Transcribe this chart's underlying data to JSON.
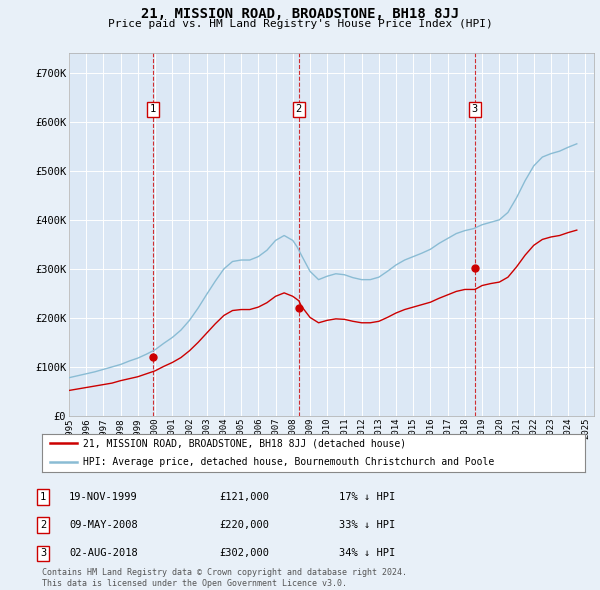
{
  "title": "21, MISSION ROAD, BROADSTONE, BH18 8JJ",
  "subtitle": "Price paid vs. HM Land Registry's House Price Index (HPI)",
  "bg_color": "#e8f0f8",
  "plot_bg_color": "#dce8f5",
  "grid_color": "#ffffff",
  "red_line_color": "#cc0000",
  "blue_line_color": "#8abcd4",
  "ylabel_ticks": [
    "£0",
    "£100K",
    "£200K",
    "£300K",
    "£400K",
    "£500K",
    "£600K",
    "£700K"
  ],
  "ytick_values": [
    0,
    100000,
    200000,
    300000,
    400000,
    500000,
    600000,
    700000
  ],
  "ylim": [
    0,
    740000
  ],
  "xlim_start": 1995.0,
  "xlim_end": 2025.5,
  "sale_points": [
    {
      "year": 1999.88,
      "price": 121000,
      "label": "1"
    },
    {
      "year": 2008.35,
      "price": 220000,
      "label": "2"
    },
    {
      "year": 2018.58,
      "price": 302000,
      "label": "3"
    }
  ],
  "sale_table": [
    {
      "num": "1",
      "date": "19-NOV-1999",
      "price": "£121,000",
      "pct": "17% ↓ HPI"
    },
    {
      "num": "2",
      "date": "09-MAY-2008",
      "price": "£220,000",
      "pct": "33% ↓ HPI"
    },
    {
      "num": "3",
      "date": "02-AUG-2018",
      "price": "£302,000",
      "pct": "34% ↓ HPI"
    }
  ],
  "legend_label_red": "21, MISSION ROAD, BROADSTONE, BH18 8JJ (detached house)",
  "legend_label_blue": "HPI: Average price, detached house, Bournemouth Christchurch and Poole",
  "footnote": "Contains HM Land Registry data © Crown copyright and database right 2024.\nThis data is licensed under the Open Government Licence v3.0.",
  "hpi_blue": {
    "years": [
      1995.0,
      1995.5,
      1996.0,
      1996.5,
      1997.0,
      1997.5,
      1998.0,
      1998.5,
      1999.0,
      1999.5,
      2000.0,
      2000.5,
      2001.0,
      2001.5,
      2002.0,
      2002.5,
      2003.0,
      2003.5,
      2004.0,
      2004.5,
      2005.0,
      2005.5,
      2006.0,
      2006.5,
      2007.0,
      2007.5,
      2008.0,
      2008.25,
      2008.5,
      2009.0,
      2009.5,
      2010.0,
      2010.5,
      2011.0,
      2011.5,
      2012.0,
      2012.5,
      2013.0,
      2013.5,
      2014.0,
      2014.5,
      2015.0,
      2015.5,
      2016.0,
      2016.5,
      2017.0,
      2017.5,
      2018.0,
      2018.5,
      2019.0,
      2019.5,
      2020.0,
      2020.5,
      2021.0,
      2021.5,
      2022.0,
      2022.5,
      2023.0,
      2023.5,
      2024.0,
      2024.5
    ],
    "values": [
      78000,
      82000,
      86000,
      90000,
      95000,
      100000,
      105000,
      112000,
      118000,
      126000,
      135000,
      148000,
      160000,
      175000,
      195000,
      220000,
      248000,
      275000,
      300000,
      315000,
      318000,
      318000,
      325000,
      338000,
      358000,
      368000,
      358000,
      345000,
      328000,
      295000,
      278000,
      285000,
      290000,
      288000,
      282000,
      278000,
      278000,
      283000,
      295000,
      308000,
      318000,
      325000,
      332000,
      340000,
      352000,
      362000,
      372000,
      378000,
      382000,
      390000,
      395000,
      400000,
      415000,
      445000,
      480000,
      510000,
      528000,
      535000,
      540000,
      548000,
      555000
    ],
    "smoothed": true
  },
  "hpi_red": {
    "years": [
      1995.0,
      1995.5,
      1996.0,
      1996.5,
      1997.0,
      1997.5,
      1998.0,
      1998.5,
      1999.0,
      1999.5,
      2000.0,
      2000.5,
      2001.0,
      2001.5,
      2002.0,
      2002.5,
      2003.0,
      2003.5,
      2004.0,
      2004.5,
      2005.0,
      2005.5,
      2006.0,
      2006.5,
      2007.0,
      2007.5,
      2008.0,
      2008.35,
      2008.5,
      2009.0,
      2009.5,
      2010.0,
      2010.5,
      2011.0,
      2011.5,
      2012.0,
      2012.5,
      2013.0,
      2013.5,
      2014.0,
      2014.5,
      2015.0,
      2015.5,
      2016.0,
      2016.5,
      2017.0,
      2017.5,
      2018.0,
      2018.58,
      2019.0,
      2019.5,
      2020.0,
      2020.5,
      2021.0,
      2021.5,
      2022.0,
      2022.5,
      2023.0,
      2023.5,
      2024.0,
      2024.5
    ],
    "values": [
      52000,
      55000,
      58000,
      61000,
      64000,
      67000,
      72000,
      76000,
      80000,
      86000,
      92000,
      101000,
      109000,
      119000,
      133000,
      150000,
      169000,
      188000,
      205000,
      215000,
      217000,
      217000,
      222000,
      231000,
      244000,
      251000,
      244000,
      235000,
      224000,
      201000,
      190000,
      195000,
      198000,
      197000,
      193000,
      190000,
      190000,
      193000,
      201000,
      210000,
      217000,
      222000,
      227000,
      232000,
      240000,
      247000,
      254000,
      258000,
      258000,
      266000,
      270000,
      273000,
      283000,
      304000,
      328000,
      348000,
      360000,
      365000,
      368000,
      374000,
      379000
    ],
    "smoothed": true
  }
}
